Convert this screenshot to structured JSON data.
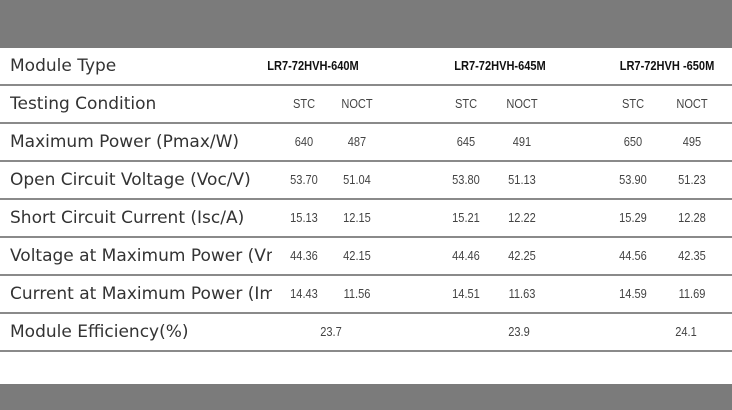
{
  "header": {
    "label": "Module Type",
    "models": [
      "LR7-72HVH-640M",
      "LR7-72HVH-645M",
      "LR7-72HVH -650M"
    ]
  },
  "rows": [
    {
      "label": "Testing Condition",
      "values": [
        "STC",
        "NOCT",
        "STC",
        "NOCT",
        "STC",
        "NOCT"
      ]
    },
    {
      "label": "Maximum Power (Pmax/W)",
      "values": [
        "640",
        "487",
        "645",
        "491",
        "650",
        "495"
      ]
    },
    {
      "label": "Open Circuit Voltage (Voc/V)",
      "values": [
        "53.70",
        "51.04",
        "53.80",
        "51.13",
        "53.90",
        "51.23"
      ]
    },
    {
      "label": "Short Circuit Current (Isc/A)",
      "values": [
        "15.13",
        "12.15",
        "15.21",
        "12.22",
        "15.29",
        "12.28"
      ]
    },
    {
      "label": "Voltage at Maximum Power (Vmp/V)",
      "values": [
        "44.36",
        "42.15",
        "44.46",
        "42.25",
        "44.56",
        "42.35"
      ]
    },
    {
      "label": "Current at Maximum Power (Imp/A)",
      "values": [
        "14.43",
        "11.56",
        "14.51",
        "11.63",
        "14.59",
        "11.69"
      ]
    }
  ],
  "efficiency": {
    "label": "Module Efficiency(%)",
    "values": [
      "23.7",
      "23.9",
      "24.1"
    ]
  }
}
